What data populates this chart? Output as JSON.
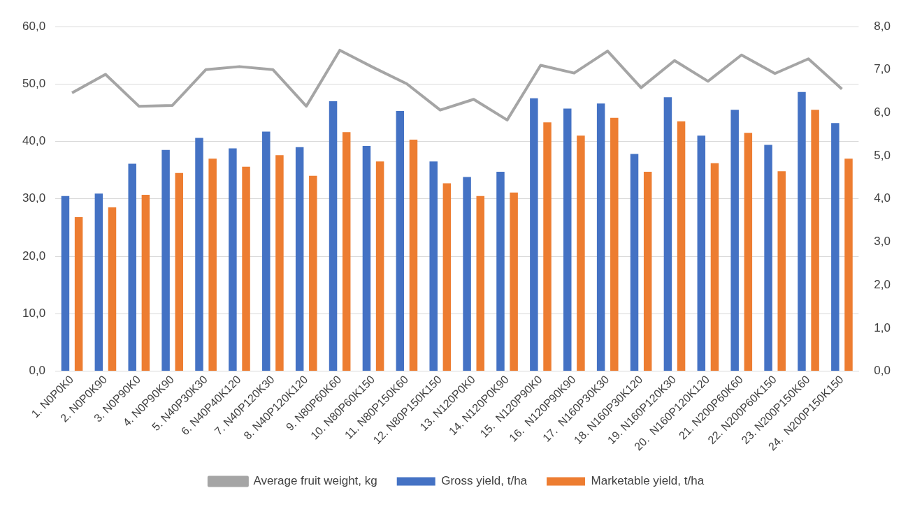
{
  "chart_data": {
    "type": "bar",
    "categories": [
      "1. N0P0K0",
      "2. N0P0K90",
      "3. N0P90K0",
      "4. N0P90K90",
      "5. N40P30K30",
      "6. N40P40K120",
      "7. N40P120K30",
      "8. N40P120K120",
      "9. N80P60K60",
      "10. N80P60K150",
      "11. N80P150K60",
      "12. N80P150K150",
      "13. N120P0K0",
      "14. N120P0K90",
      "15.  N120P90K0",
      "16.  N120P90K90",
      "17.  N160P30K30",
      "18. N160P30K120",
      "19. N160P120K30",
      "20.  N160P120K120",
      "21. N200P60K60",
      "22. N200P60K150",
      "23. N200P150K60",
      "24.  N200P150K150"
    ],
    "series": [
      {
        "name": "Gross yield, t/ha",
        "color": "#4472c4",
        "values": [
          30.5,
          30.9,
          36.1,
          38.5,
          40.6,
          38.8,
          41.7,
          39.0,
          47.0,
          39.2,
          45.3,
          36.5,
          33.8,
          34.7,
          47.5,
          45.7,
          46.6,
          37.8,
          47.7,
          41.0,
          45.5,
          39.4,
          48.6,
          43.2
        ]
      },
      {
        "name": "Marketable yield, t/ha",
        "color": "#ed7d31",
        "values": [
          26.8,
          28.5,
          30.7,
          34.5,
          37.0,
          35.6,
          37.6,
          34.0,
          41.6,
          36.5,
          40.3,
          32.7,
          30.5,
          31.1,
          43.3,
          41.0,
          44.1,
          34.7,
          43.5,
          36.2,
          41.5,
          34.8,
          45.5,
          37.0
        ]
      },
      {
        "name": "Average fruit weight, kg",
        "color": "#a5a5a5",
        "type": "line",
        "axis": "y2",
        "values": [
          6.46,
          6.89,
          6.15,
          6.17,
          7.0,
          7.07,
          7.0,
          6.15,
          7.45,
          7.05,
          6.67,
          6.06,
          6.31,
          5.83,
          7.1,
          6.92,
          7.43,
          6.58,
          7.21,
          6.73,
          7.34,
          6.91,
          7.25,
          6.55
        ]
      }
    ],
    "ylim": [
      0,
      60
    ],
    "yticks": [
      {
        "value": 0,
        "label": "0,0"
      },
      {
        "value": 10,
        "label": "10,0"
      },
      {
        "value": 20,
        "label": "20,0"
      },
      {
        "value": 30,
        "label": "30,0"
      },
      {
        "value": 40,
        "label": "40,0"
      },
      {
        "value": 50,
        "label": "50,0"
      },
      {
        "value": 60,
        "label": "60,0"
      }
    ],
    "y2lim": [
      0,
      8
    ],
    "y2ticks": [
      {
        "value": 0,
        "label": "0,0"
      },
      {
        "value": 1,
        "label": "1,0"
      },
      {
        "value": 2,
        "label": "2,0"
      },
      {
        "value": 3,
        "label": "3,0"
      },
      {
        "value": 4,
        "label": "4,0"
      },
      {
        "value": 5,
        "label": "5,0"
      },
      {
        "value": 6,
        "label": "6,0"
      },
      {
        "value": 7,
        "label": "7,0"
      },
      {
        "value": 8,
        "label": "8,0"
      }
    ],
    "grid": "y",
    "legend": "bottom",
    "marker": "none",
    "line_style": "solid"
  }
}
